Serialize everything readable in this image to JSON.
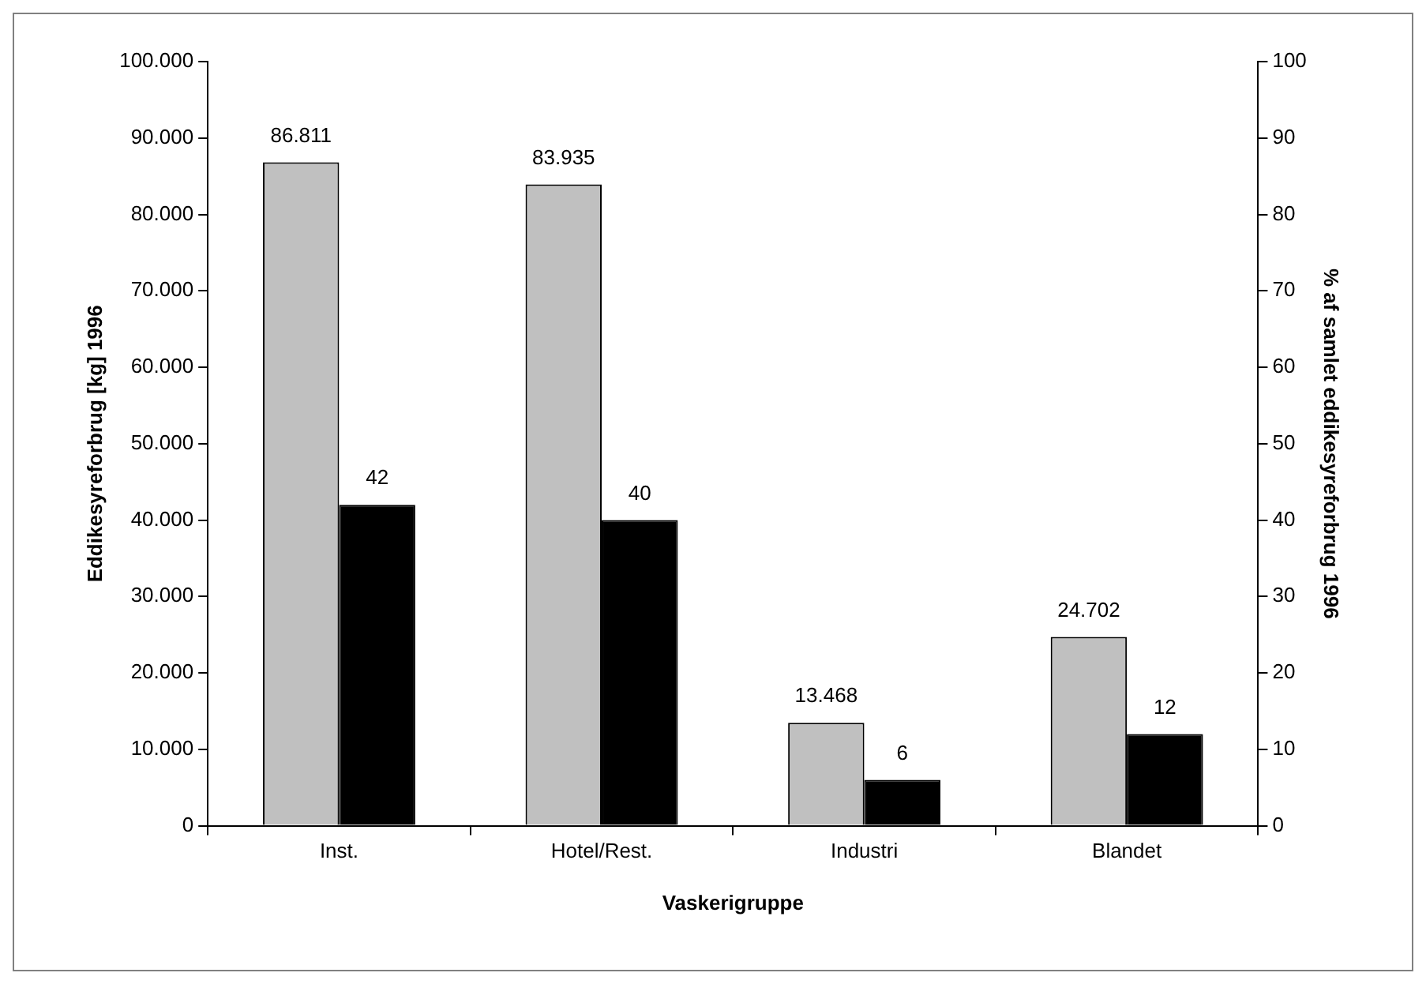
{
  "chart_data": {
    "type": "bar",
    "xlabel": "Vaskerigruppe",
    "ylabel": "Eddikesyreforbrug [kg] 1996",
    "y2label": "% af samlet eddikesyreforbrug 1996",
    "categories": [
      "Inst.",
      "Hotel/Rest.",
      "Industri",
      "Blandet"
    ],
    "series": [
      {
        "color": "#c0c0c0",
        "values": [
          86811,
          83935,
          13468,
          24702
        ],
        "value_labels": [
          "86.811",
          "83.935",
          "13.468",
          "24.702"
        ]
      },
      {
        "color": "#000000",
        "values": [
          42,
          40,
          6,
          12
        ],
        "axis": "y2",
        "value_labels": [
          "42",
          "40",
          "6",
          "12"
        ]
      }
    ],
    "ylim": [
      0,
      100000
    ],
    "yticks": [
      {
        "value": 0,
        "label": "0"
      },
      {
        "value": 10000,
        "label": "10.000"
      },
      {
        "value": 20000,
        "label": "20.000"
      },
      {
        "value": 30000,
        "label": "30.000"
      },
      {
        "value": 40000,
        "label": "40.000"
      },
      {
        "value": 50000,
        "label": "50.000"
      },
      {
        "value": 60000,
        "label": "60.000"
      },
      {
        "value": 70000,
        "label": "70.000"
      },
      {
        "value": 80000,
        "label": "80.000"
      },
      {
        "value": 90000,
        "label": "90.000"
      },
      {
        "value": 100000,
        "label": "100.000"
      }
    ],
    "y2lim": [
      0,
      100
    ],
    "y2ticks": [
      0,
      10,
      20,
      30,
      40,
      50,
      60,
      70,
      80,
      90,
      100
    ]
  }
}
